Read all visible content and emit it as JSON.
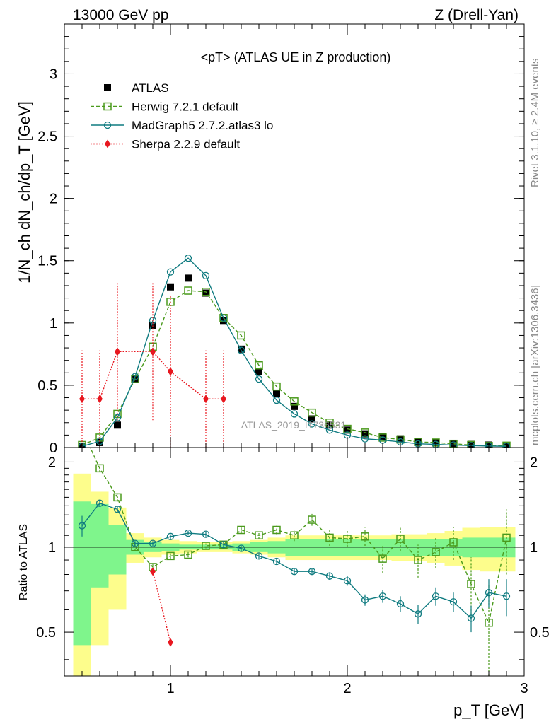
{
  "header": {
    "left": "13000 GeV pp",
    "right": "Z (Drell-Yan)"
  },
  "side_labels": {
    "rivet": "Rivet 3.1.10, ≥ 2.4M events",
    "mcplots": "mcplots.cern.ch [arXiv:1306.3436]"
  },
  "chart_data": {
    "type": "line",
    "title": "<pT> (ATLAS UE in Z production)",
    "watermark": "ATLAS_2019_I1736531",
    "xlabel": "p_T [GeV]",
    "ylabel": "1/N_ch dN_ch/dp_T [GeV]",
    "ratio_ylabel": "Ratio to ATLAS",
    "xlim": [
      0.4,
      3.0
    ],
    "ylim": [
      0,
      3.4
    ],
    "ratio_ylim": [
      0.35,
      2.25
    ],
    "x_ticks": [
      1,
      2,
      3
    ],
    "y_ticks": [
      0,
      0.5,
      1,
      1.5,
      2,
      2.5,
      3
    ],
    "ratio_y_ticks": [
      0.5,
      1,
      2
    ],
    "x": [
      0.5,
      0.6,
      0.7,
      0.8,
      0.9,
      1.0,
      1.1,
      1.2,
      1.3,
      1.4,
      1.5,
      1.6,
      1.7,
      1.8,
      1.9,
      2.0,
      2.1,
      2.2,
      2.3,
      2.4,
      2.5,
      2.6,
      2.7,
      2.8,
      2.9
    ],
    "series": [
      {
        "name": "ATLAS",
        "color": "#000000",
        "marker": "square-filled",
        "values": [
          0.01,
          0.04,
          0.18,
          0.55,
          0.98,
          1.29,
          1.36,
          1.24,
          1.02,
          0.79,
          0.61,
          0.43,
          0.33,
          0.23,
          0.18,
          0.14,
          0.11,
          0.09,
          0.07,
          0.05,
          0.04,
          0.03,
          0.025,
          0.02,
          0.015
        ]
      },
      {
        "name": "Herwig 7.2.1 default",
        "color": "#4a9a1c",
        "marker": "square-open",
        "style": "dashed",
        "values": [
          0.02,
          0.08,
          0.27,
          0.55,
          0.81,
          1.17,
          1.26,
          1.25,
          1.04,
          0.9,
          0.66,
          0.49,
          0.37,
          0.28,
          0.2,
          0.15,
          0.12,
          0.08,
          0.065,
          0.045,
          0.04,
          0.03,
          0.02,
          0.012,
          0.015
        ],
        "ratio": [
          2.6,
          1.9,
          1.5,
          1.0,
          0.85,
          0.93,
          0.94,
          1.01,
          1.02,
          1.15,
          1.1,
          1.15,
          1.1,
          1.25,
          1.08,
          1.07,
          1.09,
          0.91,
          1.07,
          0.9,
          0.96,
          1.04,
          0.74,
          0.54,
          1.08
        ],
        "ratio_err": [
          0.3,
          0.06,
          0.05,
          0.03,
          0.02,
          0.02,
          0.02,
          0.02,
          0.02,
          0.03,
          0.03,
          0.04,
          0.05,
          0.06,
          0.07,
          0.07,
          0.08,
          0.1,
          0.1,
          0.12,
          0.12,
          0.14,
          0.18,
          0.2,
          0.28
        ]
      },
      {
        "name": "MadGraph5 2.7.2.atlas3 lo",
        "color": "#0f7b80",
        "marker": "circle-open",
        "style": "solid",
        "values": [
          0.01,
          0.05,
          0.24,
          0.57,
          1.02,
          1.41,
          1.52,
          1.38,
          1.04,
          0.78,
          0.55,
          0.38,
          0.27,
          0.19,
          0.14,
          0.1,
          0.07,
          0.06,
          0.045,
          0.03,
          0.025,
          0.02,
          0.015,
          0.012,
          0.01
        ],
        "ratio": [
          1.19,
          1.43,
          1.36,
          1.03,
          1.03,
          1.09,
          1.12,
          1.11,
          1.02,
          0.99,
          0.93,
          0.89,
          0.82,
          0.82,
          0.79,
          0.76,
          0.65,
          0.67,
          0.63,
          0.58,
          0.67,
          0.64,
          0.56,
          0.69,
          0.67
        ],
        "ratio_err": [
          0.1,
          0.04,
          0.03,
          0.02,
          0.02,
          0.02,
          0.02,
          0.02,
          0.02,
          0.02,
          0.02,
          0.02,
          0.02,
          0.02,
          0.025,
          0.03,
          0.03,
          0.035,
          0.04,
          0.045,
          0.05,
          0.05,
          0.06,
          0.08,
          0.1
        ]
      },
      {
        "name": "Sherpa 2.2.9 default",
        "color": "#e8171f",
        "marker": "diamond-filled",
        "style": "dotted",
        "x": [
          0.5,
          0.6,
          0.7,
          0.9,
          1.0,
          1.2,
          1.3
        ],
        "values": [
          0.39,
          0.39,
          0.77,
          0.77,
          0.61,
          0.39,
          0.39
        ],
        "err": [
          0.39,
          0.39,
          0.55,
          0.55,
          0.61,
          0.39,
          0.39
        ],
        "ratio_x": [
          0.9,
          1.0
        ],
        "ratio": [
          0.82,
          0.46
        ]
      }
    ],
    "ratio_bands": {
      "inner": [
        0.45,
        0.72,
        0.8,
        0.94,
        0.96,
        0.97,
        0.98,
        0.98,
        0.98,
        0.97,
        0.96,
        0.95,
        0.93,
        0.93,
        0.93,
        0.93,
        0.93,
        0.93,
        0.93,
        0.93,
        0.93,
        0.93,
        0.92,
        0.92,
        0.92
      ],
      "inner_hi": [
        1.45,
        1.42,
        1.2,
        1.06,
        1.04,
        1.03,
        1.02,
        1.02,
        1.02,
        1.03,
        1.04,
        1.05,
        1.07,
        1.07,
        1.07,
        1.07,
        1.07,
        1.07,
        1.07,
        1.07,
        1.07,
        1.07,
        1.08,
        1.08,
        1.08
      ],
      "outer": [
        0.35,
        0.45,
        0.6,
        0.88,
        0.92,
        0.94,
        0.95,
        0.96,
        0.96,
        0.95,
        0.94,
        0.92,
        0.9,
        0.9,
        0.9,
        0.9,
        0.9,
        0.9,
        0.89,
        0.89,
        0.88,
        0.86,
        0.83,
        0.82,
        0.82
      ],
      "outer_hi": [
        1.82,
        1.57,
        1.38,
        1.12,
        1.08,
        1.06,
        1.05,
        1.04,
        1.04,
        1.05,
        1.06,
        1.08,
        1.1,
        1.1,
        1.1,
        1.1,
        1.1,
        1.1,
        1.11,
        1.11,
        1.12,
        1.14,
        1.17,
        1.18,
        1.18
      ],
      "inner_color": "#7ff58c",
      "outer_color": "#fdfd8c"
    }
  }
}
